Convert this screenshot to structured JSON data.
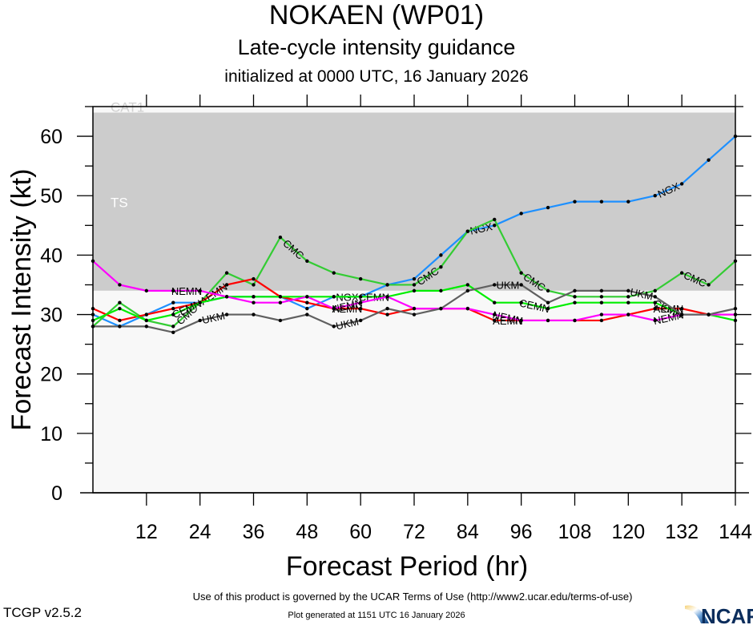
{
  "header": {
    "title": "NOKAEN (WP01)",
    "subtitle": "Late-cycle intensity guidance",
    "init": "initialized at 0000 UTC, 16 January 2026"
  },
  "footer": {
    "terms": "Use of this product is governed by the UCAR Terms of Use (http://www2.ucar.edu/terms-of-use)",
    "generated": "Plot generated at 1151 UTC   16 January 2026",
    "version": "TCGP v2.5.2",
    "logo_text": "NCAR"
  },
  "chart_data": {
    "type": "line",
    "title": "NOKAEN (WP01)",
    "xlabel": "Forecast Period (hr)",
    "ylabel": "Forecast Intensity (kt)",
    "xlim": [
      0,
      144
    ],
    "ylim": [
      0,
      65
    ],
    "xticks": [
      12,
      24,
      36,
      48,
      60,
      72,
      84,
      96,
      108,
      120,
      132,
      144
    ],
    "yticks": [
      0,
      10,
      20,
      30,
      40,
      50,
      60
    ],
    "grid": false,
    "bands": [
      {
        "label": "TS",
        "from": 34,
        "to": 64,
        "color": "#cccccc"
      },
      {
        "label": "CAT1",
        "from": 64,
        "to": 83,
        "color": "#f8f8f8"
      },
      {
        "label": "",
        "from": 0,
        "to": 34,
        "color": "#f8f8f8"
      }
    ],
    "x": [
      0,
      6,
      12,
      18,
      24,
      30,
      36,
      42,
      48,
      54,
      60,
      66,
      72,
      78,
      84,
      90,
      96,
      102,
      108,
      114,
      120,
      126,
      132,
      138,
      144
    ],
    "series": [
      {
        "name": "NGX",
        "color": "#1e90ff",
        "values": [
          30,
          28,
          30,
          32,
          32,
          33,
          33,
          33,
          31,
          33,
          33,
          35,
          36,
          40,
          44,
          45,
          47,
          48,
          49,
          49,
          49,
          50,
          52,
          56,
          60
        ],
        "labels_at": [
          60,
          90,
          132
        ]
      },
      {
        "name": "CMC",
        "color": "#33cc33",
        "values": [
          28,
          32,
          29,
          28,
          32,
          37,
          35,
          43,
          39,
          37,
          36,
          35,
          35,
          38,
          44,
          46,
          37,
          34,
          33,
          33,
          33,
          34,
          37,
          35,
          39
        ],
        "labels_at": [
          24,
          48,
          78,
          102,
          138
        ]
      },
      {
        "name": "AEMN",
        "color": "#ff0000",
        "values": [
          31,
          29,
          30,
          31,
          32,
          35,
          36,
          33,
          32,
          31,
          31,
          30,
          31,
          31,
          31,
          29,
          29,
          29,
          29,
          29,
          30,
          31,
          31,
          30,
          30
        ],
        "labels_at": [
          30,
          60,
          96,
          132
        ]
      },
      {
        "name": "CEMN",
        "color": "#00ee00",
        "values": [
          29,
          31,
          29,
          30,
          32,
          33,
          33,
          33,
          33,
          33,
          33,
          33,
          34,
          34,
          35,
          32,
          32,
          31,
          32,
          32,
          32,
          32,
          30,
          30,
          29
        ],
        "labels_at": [
          24,
          66,
          102,
          132
        ]
      },
      {
        "name": "NEMN",
        "color": "#ff00ff",
        "values": [
          39,
          35,
          34,
          34,
          34,
          33,
          32,
          32,
          33,
          31,
          32,
          33,
          31,
          31,
          31,
          30,
          29,
          29,
          29,
          30,
          30,
          29,
          30,
          30,
          30
        ],
        "labels_at": [
          24,
          60,
          96,
          132
        ]
      },
      {
        "name": "UKM",
        "color": "#606060",
        "values": [
          28,
          28,
          28,
          27,
          29,
          30,
          30,
          29,
          30,
          28,
          29,
          31,
          30,
          31,
          34,
          35,
          35,
          32,
          34,
          34,
          34,
          33,
          30,
          30,
          31
        ],
        "labels_at": [
          30,
          60,
          96,
          126
        ]
      }
    ]
  }
}
